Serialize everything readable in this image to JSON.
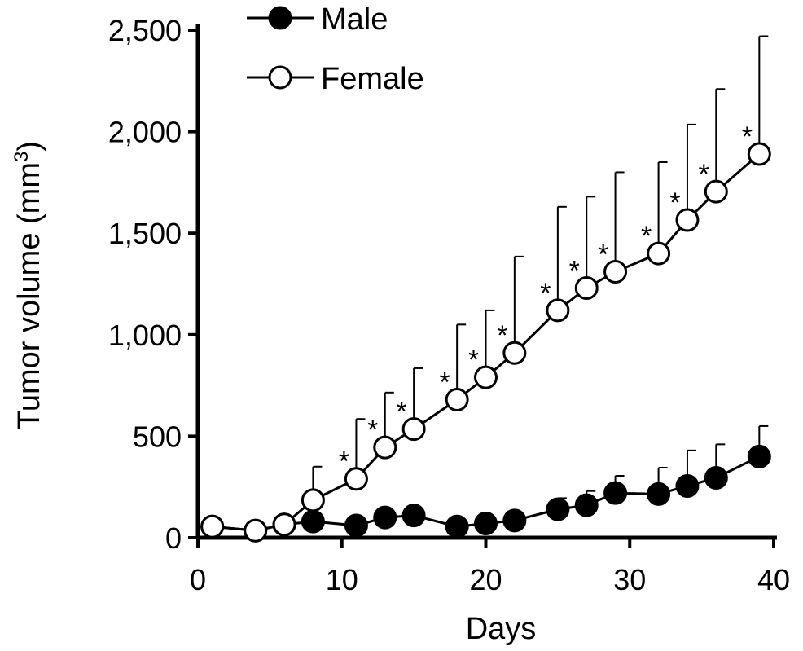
{
  "chart_data": {
    "type": "line",
    "xlabel": "Days",
    "ylabel_main": "Tumor volume (mm",
    "ylabel_sup": "3",
    "ylabel_close": ")",
    "xlim": [
      0,
      40
    ],
    "ylim": [
      0,
      2500
    ],
    "x_ticks": [
      0,
      10,
      20,
      30,
      40
    ],
    "y_ticks": [
      0,
      500,
      1000,
      1500,
      2000,
      2500
    ],
    "x_tick_labels": [
      "0",
      "10",
      "20",
      "30",
      "40"
    ],
    "y_tick_labels": [
      "0",
      "500",
      "1,000",
      "1,500",
      "2,000",
      "2,500"
    ],
    "grid": false,
    "legend_position": "top-left",
    "significance_marker": "*",
    "series": [
      {
        "name": "Male",
        "marker": "filled-circle",
        "x": [
          1,
          4,
          6,
          8,
          11,
          13,
          15,
          18,
          20,
          22,
          25,
          27,
          29,
          32,
          34,
          36,
          39
        ],
        "y": [
          55,
          35,
          65,
          80,
          60,
          100,
          110,
          55,
          70,
          85,
          140,
          160,
          220,
          215,
          255,
          295,
          400
        ],
        "error": [
          0,
          0,
          0,
          0,
          0,
          0,
          0,
          0,
          0,
          0,
          55,
          70,
          85,
          130,
          175,
          165,
          150
        ]
      },
      {
        "name": "Female",
        "marker": "open-circle",
        "x": [
          1,
          4,
          6,
          8,
          11,
          13,
          15,
          18,
          20,
          22,
          25,
          27,
          29,
          32,
          34,
          36,
          39
        ],
        "y": [
          55,
          35,
          65,
          185,
          290,
          445,
          535,
          680,
          790,
          910,
          1120,
          1230,
          1310,
          1400,
          1565,
          1705,
          1890
        ],
        "error": [
          0,
          0,
          0,
          165,
          295,
          270,
          300,
          370,
          330,
          475,
          510,
          450,
          490,
          450,
          470,
          505,
          580
        ],
        "significant": [
          false,
          false,
          false,
          false,
          true,
          true,
          true,
          true,
          true,
          true,
          true,
          true,
          true,
          true,
          true,
          true,
          true
        ]
      }
    ]
  }
}
